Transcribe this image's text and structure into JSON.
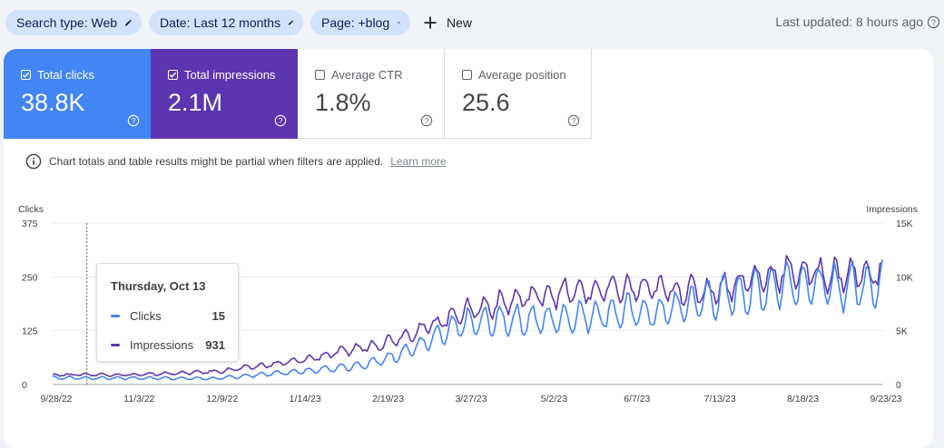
{
  "filters": [
    {
      "label": "Search type: Web",
      "icon": "pencil-icon"
    },
    {
      "label": "Date: Last 12 months",
      "icon": "pencil-icon"
    },
    {
      "label": "Page: +blog",
      "icon": "close-icon"
    }
  ],
  "new_label": "New",
  "last_updated": "Last updated: 8 hours ago",
  "metrics": [
    {
      "label": "Total clicks",
      "value": "38.8K",
      "checked": true,
      "color": "#4285f4"
    },
    {
      "label": "Total impressions",
      "value": "2.1M",
      "checked": true,
      "color": "#5e35b1"
    },
    {
      "label": "Average CTR",
      "value": "1.8%",
      "checked": false
    },
    {
      "label": "Average position",
      "value": "25.6",
      "checked": false
    }
  ],
  "notice": {
    "text": "Chart totals and table results might be partial when filters are applied.",
    "link": "Learn more"
  },
  "tooltip": {
    "date": "Thursday, Oct 13",
    "rows": [
      {
        "name": "Clicks",
        "value": "15",
        "color": "#4285f4"
      },
      {
        "name": "Impressions",
        "value": "931",
        "color": "#5e35b1"
      }
    ]
  },
  "chart_data": {
    "type": "line",
    "left_axis_title": "Clicks",
    "right_axis_title": "Impressions",
    "left_ticks": [
      "0",
      "125",
      "250",
      "375"
    ],
    "right_ticks": [
      "0",
      "5K",
      "10K",
      "15K"
    ],
    "ylim_left": [
      0,
      375
    ],
    "ylim_right": [
      0,
      15000
    ],
    "x_ticks": [
      "9/28/22",
      "11/3/22",
      "12/9/22",
      "1/14/23",
      "2/19/23",
      "3/27/23",
      "5/2/23",
      "6/7/23",
      "7/13/23",
      "8/18/23",
      "9/23/23"
    ],
    "x_start": "2022-09-28",
    "x_end": "2023-09-27",
    "highlight_date": "2022-10-13",
    "grid": true,
    "series": [
      {
        "name": "Clicks",
        "axis": "left",
        "color": "#4285f4",
        "anchors": [
          [
            "2022-09-28",
            16
          ],
          [
            "2022-10-13",
            15
          ],
          [
            "2022-11-03",
            15
          ],
          [
            "2022-12-09",
            14
          ],
          [
            "2023-01-01",
            25
          ],
          [
            "2023-01-14",
            30
          ],
          [
            "2023-02-10",
            45
          ],
          [
            "2023-02-19",
            55
          ],
          [
            "2023-03-10",
            95
          ],
          [
            "2023-03-27",
            140
          ],
          [
            "2023-04-15",
            150
          ],
          [
            "2023-05-02",
            150
          ],
          [
            "2023-06-07",
            170
          ],
          [
            "2023-06-20",
            165
          ],
          [
            "2023-07-13",
            200
          ],
          [
            "2023-08-01",
            215
          ],
          [
            "2023-08-18",
            240
          ],
          [
            "2023-09-05",
            225
          ],
          [
            "2023-09-23",
            235
          ],
          [
            "2023-09-27",
            240
          ]
        ],
        "weekly_amplitude": 0.22
      },
      {
        "name": "Impressions",
        "axis": "right",
        "color": "#5e35b1",
        "anchors": [
          [
            "2022-09-28",
            900
          ],
          [
            "2022-10-13",
            931
          ],
          [
            "2022-11-03",
            900
          ],
          [
            "2022-12-09",
            1200
          ],
          [
            "2023-01-14",
            2200
          ],
          [
            "2023-02-19",
            3800
          ],
          [
            "2023-03-10",
            5200
          ],
          [
            "2023-03-27",
            6800
          ],
          [
            "2023-05-02",
            8400
          ],
          [
            "2023-06-07",
            8900
          ],
          [
            "2023-07-13",
            8700
          ],
          [
            "2023-08-01",
            9800
          ],
          [
            "2023-08-18",
            10500
          ],
          [
            "2023-09-05",
            10200
          ],
          [
            "2023-09-23",
            10300
          ],
          [
            "2023-09-27",
            10400
          ]
        ],
        "weekly_amplitude": 0.12
      }
    ]
  }
}
